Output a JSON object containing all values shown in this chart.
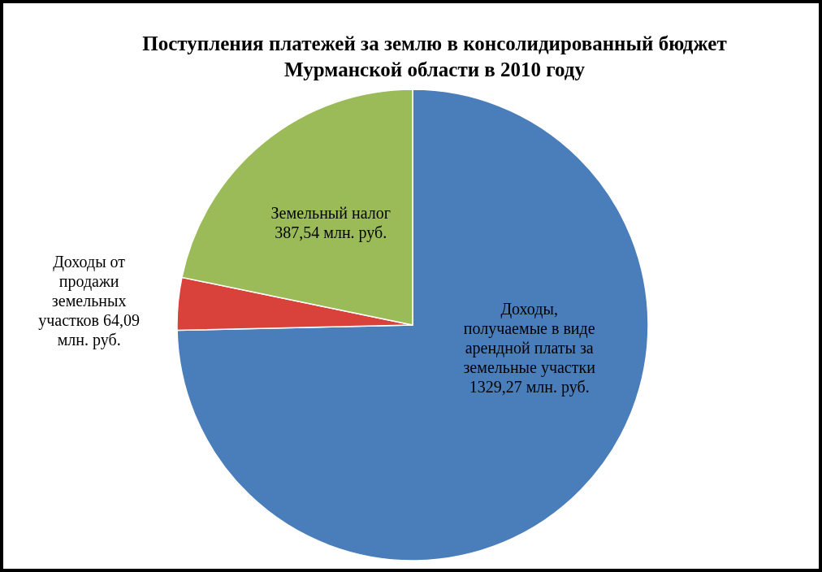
{
  "chart_data": {
    "type": "pie",
    "title": "Поступления платежей за землю в консолидированный бюджет Мурманской области в 2010 году",
    "categories": [
      "Доходы, получаемые в виде арендной платы за земельные участки",
      "Доходы от продажи земельных участков",
      "Земельный налог"
    ],
    "values": [
      1329.27,
      64.09,
      387.54
    ],
    "value_labels": [
      "1329,27 млн. руб.",
      "64,09 млн. руб.",
      "387,54 млн. руб."
    ],
    "colors": [
      "#4a7ebb",
      "#d9413b",
      "#9bbb59"
    ]
  }
}
